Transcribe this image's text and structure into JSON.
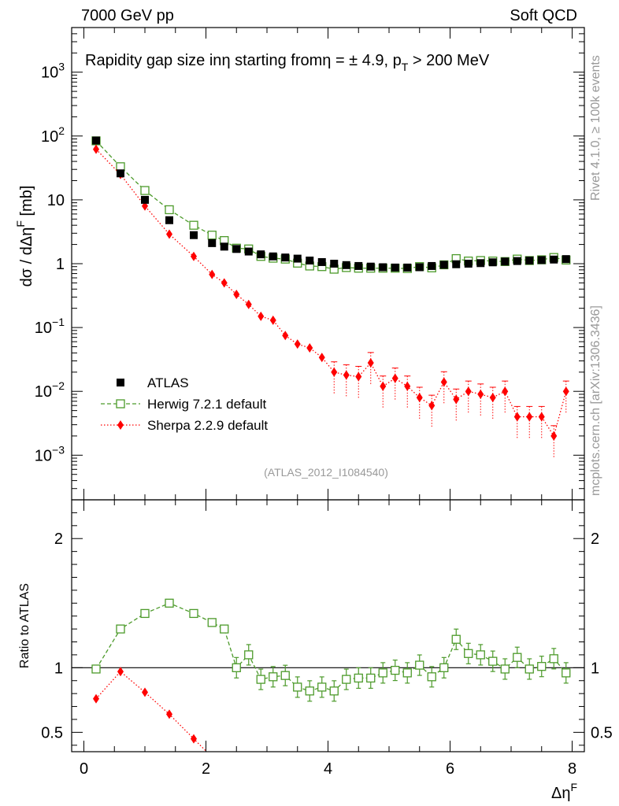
{
  "header": {
    "left": "7000 GeV pp",
    "right": "Soft QCD"
  },
  "side_labels": {
    "rivet": "Rivet 4.1.0, ≥ 100k events",
    "mcplots": "mcplots.cern.ch [arXiv:1306.3436]"
  },
  "chart_data": {
    "type": "scatter",
    "title": "Rapidity gap size in η starting from η = ± 4.9, pT > 200 MeV",
    "title_parts": {
      "t1": "Rapidity gap size in",
      "t2": "η starting from",
      "t3": "η = ± 4.9, p",
      "t4": "T",
      "t5": " > 200 MeV"
    },
    "analysis_id": "(ATLAS_2012_I1084540)",
    "xlabel": "ΔηF",
    "xlabel_parts": {
      "main": "Δη",
      "sup": "F"
    },
    "ylabel": "dσ / dΔηF [mb]",
    "ylabel_parts": {
      "a": "dσ / dΔη",
      "sup": "F",
      "b": " [mb]"
    },
    "ratio_ylabel": "Ratio to ATLAS",
    "xlim": [
      -0.2,
      8.2
    ],
    "ylim": [
      0.0002,
      5000
    ],
    "ratio_ylim": [
      0.35,
      2.3
    ],
    "x_ticks": [
      "0",
      "2",
      "4",
      "6",
      "8"
    ],
    "x_tick_values": [
      0,
      2,
      4,
      6,
      8
    ],
    "y_ticks": [
      {
        "value": 1000,
        "base": "10",
        "exp": "3"
      },
      {
        "value": 100,
        "base": "10",
        "exp": "2"
      },
      {
        "value": 10,
        "base": "10",
        "exp": ""
      },
      {
        "value": 1,
        "base": "1",
        "exp": ""
      },
      {
        "value": 0.1,
        "base": "10",
        "exp": "−1"
      },
      {
        "value": 0.01,
        "base": "10",
        "exp": "−2"
      },
      {
        "value": 0.001,
        "base": "10",
        "exp": "−3"
      }
    ],
    "ratio_ticks": [
      "0.5",
      "1",
      "2"
    ],
    "ratio_tick_values": [
      0.5,
      1,
      2
    ],
    "x": [
      0.2,
      0.6,
      1.0,
      1.4,
      1.8,
      2.1,
      2.3,
      2.5,
      2.7,
      2.9,
      3.1,
      3.3,
      3.5,
      3.7,
      3.9,
      4.1,
      4.3,
      4.5,
      4.7,
      4.9,
      5.1,
      5.3,
      5.5,
      5.7,
      5.9,
      6.1,
      6.3,
      6.5,
      6.7,
      6.9,
      7.1,
      7.3,
      7.5,
      7.7,
      7.9
    ],
    "series": [
      {
        "name": "ATLAS",
        "color": "#000000",
        "style": "marker",
        "values": [
          85,
          26,
          10,
          4.8,
          2.8,
          2.1,
          1.85,
          1.7,
          1.55,
          1.4,
          1.3,
          1.25,
          1.2,
          1.12,
          1.06,
          1.0,
          0.95,
          0.92,
          0.9,
          0.88,
          0.87,
          0.87,
          0.88,
          0.92,
          0.96,
          0.98,
          1.0,
          1.02,
          1.05,
          1.08,
          1.1,
          1.12,
          1.14,
          1.16,
          1.18
        ]
      },
      {
        "name": "Herwig 7.2.1 default",
        "color": "#4c9a2a",
        "style": "dashed",
        "values": [
          84,
          33,
          14,
          7,
          4.0,
          2.8,
          2.3,
          1.75,
          1.7,
          1.3,
          1.22,
          1.18,
          1.02,
          0.92,
          0.9,
          0.82,
          0.87,
          0.85,
          0.85,
          0.85,
          0.85,
          0.84,
          0.9,
          0.86,
          0.96,
          1.2,
          1.1,
          1.12,
          1.1,
          1.08,
          1.18,
          1.12,
          1.15,
          1.25,
          1.14
        ],
        "ratio": [
          0.99,
          1.3,
          1.42,
          1.5,
          1.42,
          1.35,
          1.3,
          1.0,
          1.1,
          0.91,
          0.93,
          0.94,
          0.85,
          0.82,
          0.85,
          0.82,
          0.91,
          0.92,
          0.92,
          0.96,
          0.98,
          0.96,
          1.02,
          0.93,
          1.0,
          1.22,
          1.11,
          1.1,
          1.05,
          0.99,
          1.08,
          0.99,
          1.01,
          1.07,
          0.96
        ]
      },
      {
        "name": "Sherpa 2.2.9 default",
        "color": "#ff0000",
        "style": "dotted",
        "values": [
          62,
          25,
          8,
          2.9,
          1.3,
          0.68,
          0.5,
          0.33,
          0.23,
          0.15,
          0.13,
          0.075,
          0.055,
          0.048,
          0.034,
          0.02,
          0.018,
          0.017,
          0.028,
          0.012,
          0.016,
          0.012,
          0.008,
          0.006,
          0.014,
          0.0075,
          0.01,
          0.009,
          0.008,
          0.01,
          0.004,
          0.004,
          0.004,
          0.002,
          0.01
        ],
        "ratio": [
          0.76,
          0.97,
          0.81,
          0.64,
          0.45
        ]
      }
    ]
  }
}
